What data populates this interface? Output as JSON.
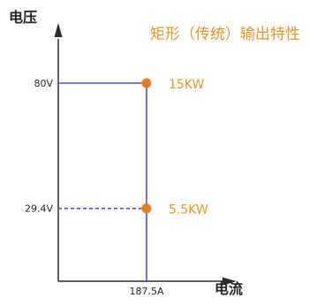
{
  "chart_data": {
    "type": "line",
    "title": "矩形（传统）输出特性",
    "ylabel": "电压",
    "xlabel": "电流",
    "x_ticks": [
      {
        "value": 187.5,
        "label": "187.5A"
      }
    ],
    "y_ticks": [
      {
        "value": 80,
        "label": "80V"
      },
      {
        "value": 29.4,
        "label": "29.4V"
      }
    ],
    "xlim": [
      0,
      187.5
    ],
    "ylim": [
      0,
      80
    ],
    "series": [
      {
        "style": "solid",
        "points": [
          {
            "x": 0,
            "y": 80
          },
          {
            "x": 187.5,
            "y": 80
          },
          {
            "x": 187.5,
            "y": 0
          }
        ]
      },
      {
        "style": "dashed",
        "points": [
          {
            "x": 0,
            "y": 29.4
          },
          {
            "x": 187.5,
            "y": 29.4
          }
        ]
      }
    ],
    "annotations": [
      {
        "x": 187.5,
        "y": 80,
        "label": "15KW"
      },
      {
        "x": 187.5,
        "y": 29.4,
        "label": "5.5KW"
      }
    ],
    "colors": {
      "line": "#4f4fd8",
      "marker": "#e87e24",
      "accent_text": "#e8952a",
      "axis": "#2a2a2a",
      "text": "#222222"
    }
  }
}
